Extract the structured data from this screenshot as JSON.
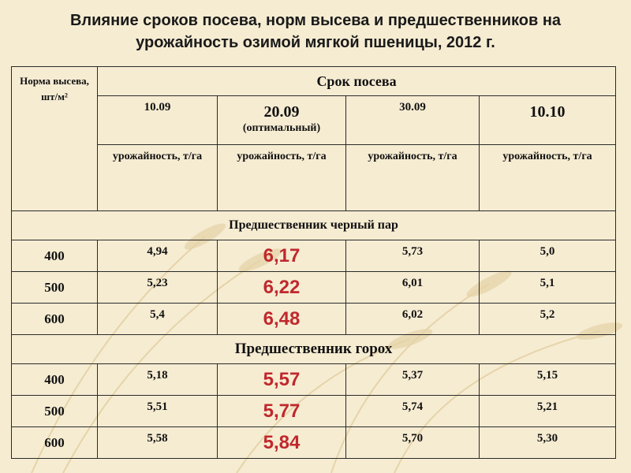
{
  "title": {
    "line1": "Влияние сроков посева, норм высева и предшественников на",
    "line2": "урожайность озимой мягкой пшеницы, 2012 г."
  },
  "header": {
    "rate_label": "Норма высева, шт/м²",
    "term_label": "Срок посева",
    "dates": [
      {
        "date": "10.09",
        "note": ""
      },
      {
        "date": "20.09",
        "note": "(оптимальный)"
      },
      {
        "date": "30.09",
        "note": ""
      },
      {
        "date": "10.10",
        "note": ""
      }
    ],
    "units": [
      "урожайность, т/га",
      "урожайность, т/га",
      "урожайность, т/га",
      "урожайность, т/га"
    ]
  },
  "sections": [
    {
      "label": "Предшественник черный пар",
      "rows": [
        {
          "rate": "400",
          "values": [
            "4,94",
            "6,17",
            "5,73",
            "5,0"
          ]
        },
        {
          "rate": "500",
          "values": [
            "5,23",
            "6,22",
            "6,01",
            "5,1"
          ]
        },
        {
          "rate": "600",
          "values": [
            "5,4",
            "6,48",
            "6,02",
            "5,2"
          ]
        }
      ]
    },
    {
      "label": "Предшественник горох",
      "rows": [
        {
          "rate": "400",
          "values": [
            "5,18",
            "5,57",
            "5,37",
            "5,15"
          ]
        },
        {
          "rate": "500",
          "values": [
            "5,51",
            "5,77",
            "5,74",
            "5,21"
          ]
        },
        {
          "rate": "600",
          "values": [
            "5,58",
            "5,84",
            "5,70",
            "5,30"
          ]
        }
      ]
    }
  ],
  "colors": {
    "background": "#f6ecd2",
    "highlight": "#c0282d",
    "border": "#2a2a2a"
  }
}
